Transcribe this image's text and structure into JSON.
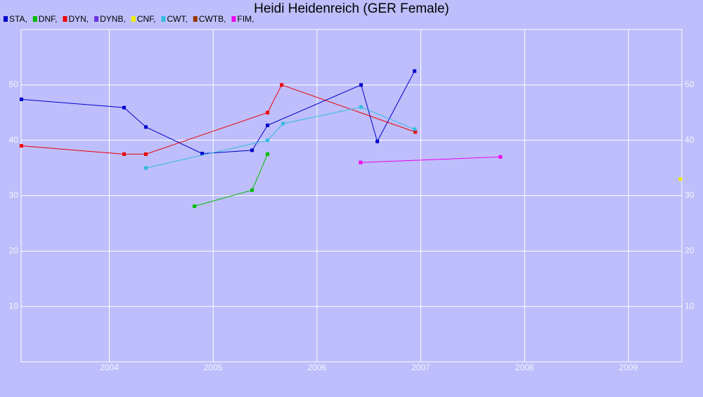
{
  "chart_data": {
    "type": "line",
    "title": "Heidi Heidenreich (GER Female)",
    "xlim": [
      2003.15,
      2009.515
    ],
    "xticks": [
      2004,
      2005,
      2006,
      2007,
      2008,
      2009
    ],
    "ylim": [
      0,
      60
    ],
    "yticks": [
      10,
      20,
      30,
      40,
      50
    ],
    "grid": true,
    "legend": "top-left",
    "series": [
      {
        "name": "STA,",
        "color": "#0000cc",
        "x": [
          2003.153,
          2004.142,
          2004.352,
          2004.894,
          2005.375,
          2005.524,
          2006.425,
          2006.581,
          2006.94
        ],
        "values": [
          47.4,
          45.9,
          42.4,
          37.6,
          38.2,
          42.7,
          50,
          39.8,
          52.5
        ]
      },
      {
        "name": "DNF,",
        "color": "#00bb00",
        "x": [
          2004.82,
          2005.375,
          2005.524
        ],
        "values": [
          28.1,
          31,
          37.5
        ]
      },
      {
        "name": "DYN,",
        "color": "#ee0000",
        "x": [
          2003.153,
          2004.142,
          2004.352,
          2005.524,
          2005.66,
          2006.947
        ],
        "values": [
          39,
          37.5,
          37.5,
          45,
          50,
          41.5
        ]
      },
      {
        "name": "DYNB,",
        "color": "#6633dd",
        "x": [],
        "values": []
      },
      {
        "name": "CNF,",
        "color": "#eeee00",
        "x": [
          2009.5
        ],
        "values": [
          33
        ]
      },
      {
        "name": "CWT,",
        "color": "#33bbdd",
        "x": [
          2004.352,
          2005.524,
          2005.673,
          2006.425,
          2006.94
        ],
        "values": [
          35,
          40,
          43,
          46,
          42
        ]
      },
      {
        "name": "CWTB,",
        "color": "#993300",
        "x": [],
        "values": []
      },
      {
        "name": "FIM,",
        "color": "#ee00ee",
        "x": [
          2006.42,
          2007.767
        ],
        "values": [
          36,
          37
        ]
      }
    ]
  }
}
